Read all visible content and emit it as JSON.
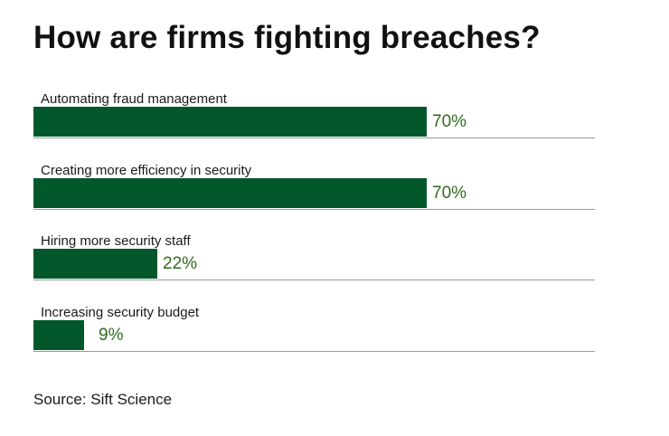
{
  "chart_data": {
    "type": "bar",
    "orientation": "horizontal",
    "title": "How are firms fighting breaches?",
    "categories": [
      "Automating fraud management",
      "Creating more efficiency in security",
      "Hiring more security staff",
      "Increasing security budget"
    ],
    "values": [
      70,
      70,
      22,
      9
    ],
    "value_labels": [
      "70%",
      "70%",
      "22%",
      "9%"
    ],
    "xlim": [
      0,
      100
    ],
    "grid": false,
    "legend": "none",
    "source": "Source: Sift Science",
    "colors": {
      "bar": "#03582b",
      "value_text": "#2e6b1f",
      "baseline": "#9a9a9a"
    }
  }
}
